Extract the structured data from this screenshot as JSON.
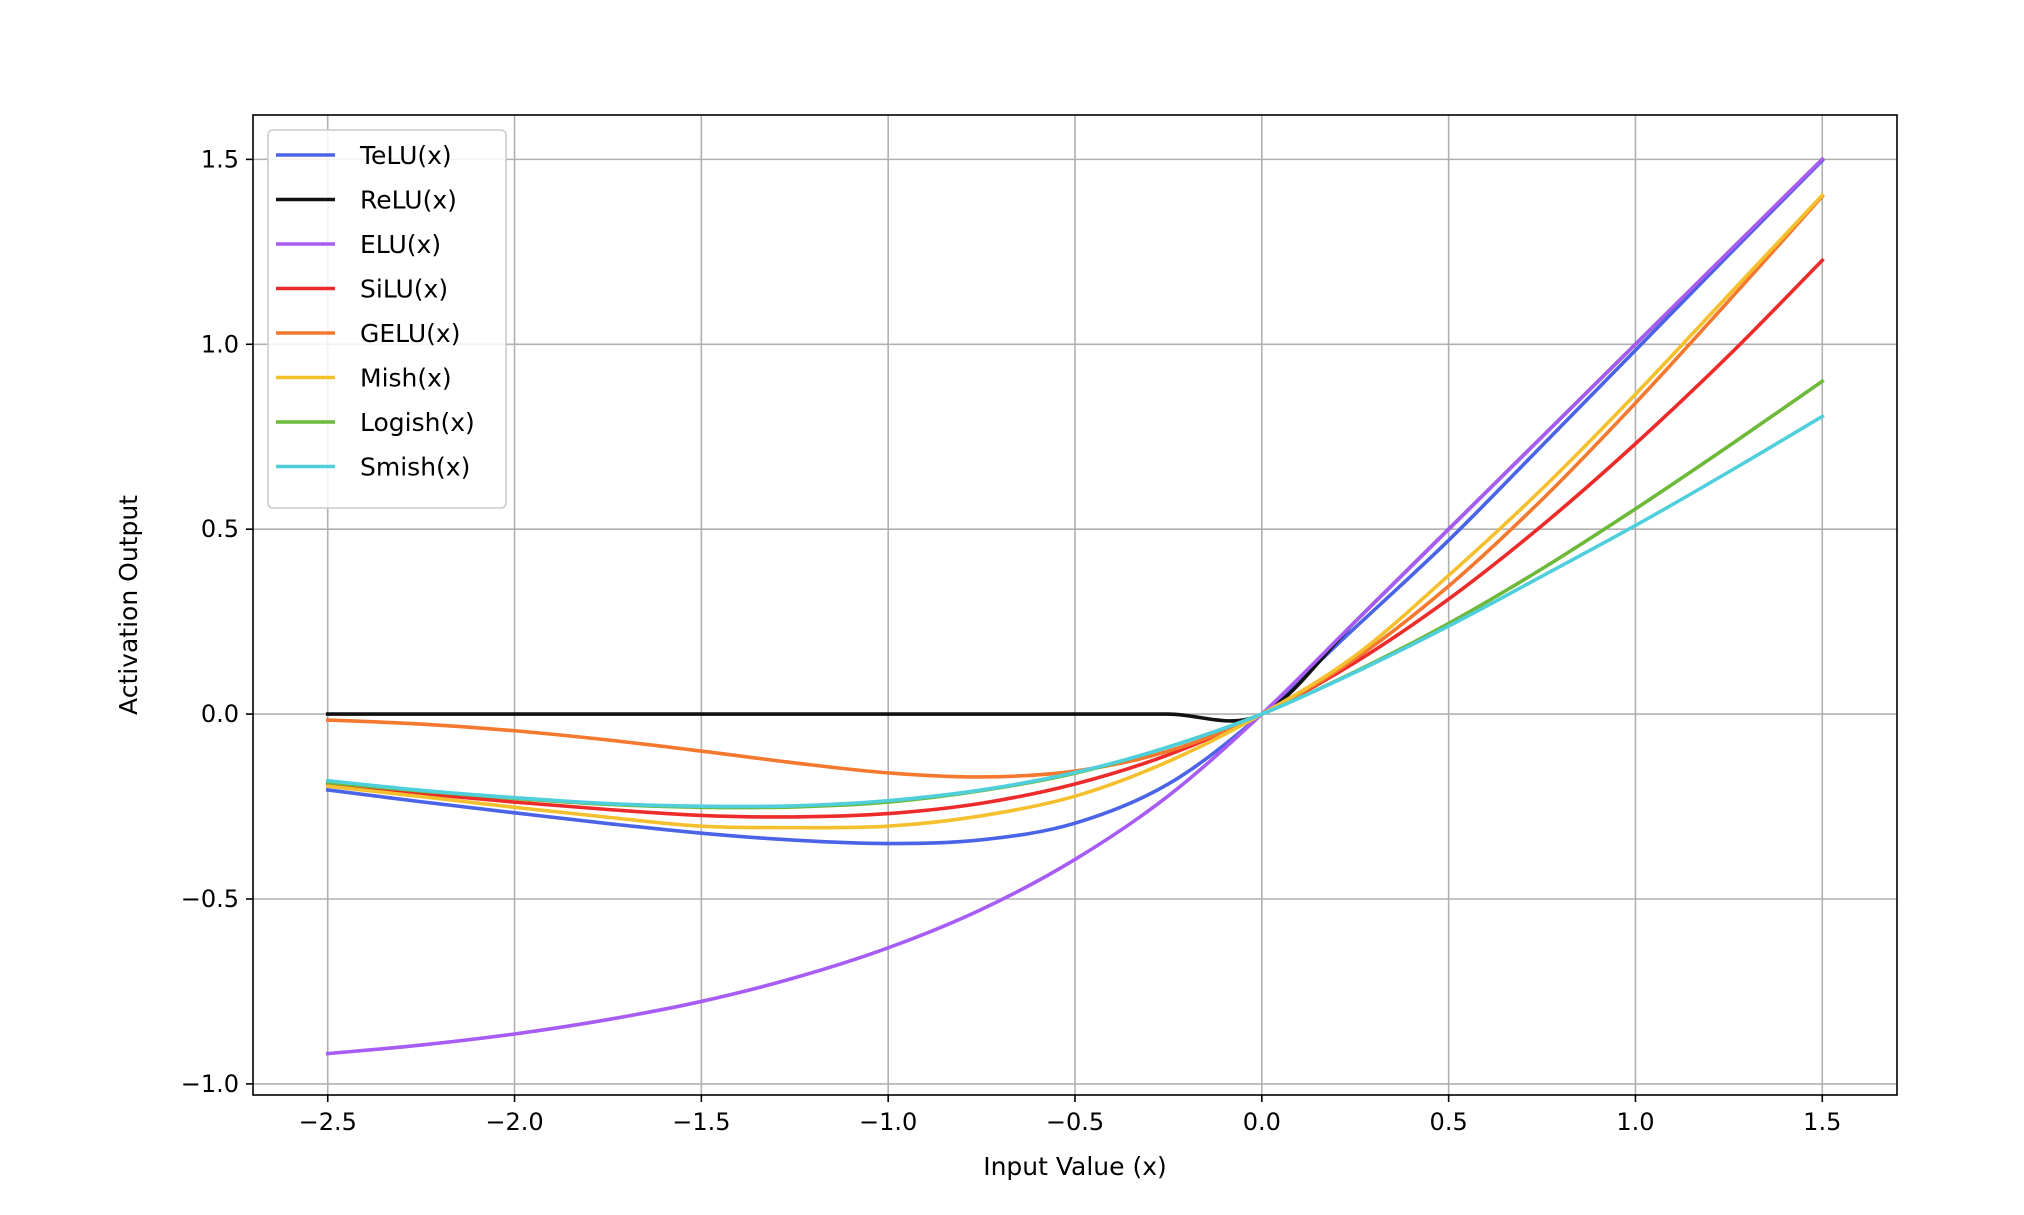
{
  "chart_data": {
    "type": "line",
    "xlabel": "Input Value (x)",
    "ylabel": "Activation Output",
    "xlim": [
      -2.7,
      1.7
    ],
    "ylim": [
      -1.03,
      1.62
    ],
    "xticks": [
      -2.5,
      -2.0,
      -1.5,
      -1.0,
      -0.5,
      0.0,
      0.5,
      1.0,
      1.5
    ],
    "xtick_labels": [
      "−2.5",
      "−2.0",
      "−1.5",
      "−1.0",
      "−0.5",
      "0.0",
      "0.5",
      "1.0",
      "1.5"
    ],
    "yticks": [
      -1.0,
      -0.5,
      0.0,
      0.5,
      1.0,
      1.5
    ],
    "ytick_labels": [
      "−1.0",
      "−0.5",
      "0.0",
      "0.5",
      "1.0",
      "1.5"
    ],
    "grid": true,
    "legend_position": "upper-left",
    "x": [
      -2.5,
      -2.25,
      -2.0,
      -1.75,
      -1.5,
      -1.25,
      -1.0,
      -0.75,
      -0.5,
      -0.25,
      0.0,
      0.25,
      0.5,
      0.75,
      1.0,
      1.25,
      1.5
    ],
    "series": [
      {
        "name": "TeLU(x)",
        "color": "#4a63e7",
        "values": [
          -0.205,
          -0.237,
          -0.267,
          -0.296,
          -0.322,
          -0.341,
          -0.35,
          -0.34,
          -0.295,
          -0.189,
          0.0,
          0.234,
          0.47,
          0.726,
          0.984,
          1.242,
          1.497
        ]
      },
      {
        "name": "ReLU(x)",
        "color": "#111111",
        "values": [
          0.0,
          0.0,
          0.0,
          0.0,
          0.0,
          0.0,
          0.0,
          0.0,
          0.0,
          0.0,
          0.0,
          0.25,
          0.5,
          0.75,
          1.0,
          1.25,
          1.5
        ]
      },
      {
        "name": "ELU(x)",
        "color": "#a85cf6",
        "values": [
          -0.918,
          -0.895,
          -0.865,
          -0.826,
          -0.777,
          -0.713,
          -0.632,
          -0.528,
          -0.393,
          -0.221,
          0.0,
          0.25,
          0.5,
          0.75,
          1.0,
          1.25,
          1.5
        ]
      },
      {
        "name": "SiLU(x)",
        "color": "#ee2b2b",
        "values": [
          -0.189,
          -0.215,
          -0.238,
          -0.258,
          -0.274,
          -0.278,
          -0.269,
          -0.241,
          -0.189,
          -0.11,
          0.0,
          0.14,
          0.311,
          0.51,
          0.731,
          0.97,
          1.227
        ]
      },
      {
        "name": "GELU(x)",
        "color": "#f4782e",
        "values": [
          -0.016,
          -0.027,
          -0.045,
          -0.07,
          -0.1,
          -0.132,
          -0.159,
          -0.17,
          -0.154,
          -0.1,
          0.0,
          0.15,
          0.346,
          0.58,
          0.841,
          1.118,
          1.4
        ]
      },
      {
        "name": "Mish(x)",
        "color": "#f5c02e",
        "values": [
          -0.195,
          -0.223,
          -0.252,
          -0.279,
          -0.303,
          -0.307,
          -0.303,
          -0.275,
          -0.222,
          -0.128,
          0.0,
          0.158,
          0.375,
          0.609,
          0.865,
          1.134,
          1.403
        ]
      },
      {
        "name": "Logish(x)",
        "color": "#6db93a",
        "values": [
          -0.185,
          -0.208,
          -0.228,
          -0.244,
          -0.252,
          -0.251,
          -0.238,
          -0.207,
          -0.16,
          -0.089,
          0.0,
          0.115,
          0.245,
          0.393,
          0.555,
          0.725,
          0.9
        ]
      },
      {
        "name": "Smish(x)",
        "color": "#4fcfdc",
        "values": [
          -0.18,
          -0.206,
          -0.226,
          -0.242,
          -0.249,
          -0.248,
          -0.234,
          -0.205,
          -0.158,
          -0.089,
          0.0,
          0.113,
          0.238,
          0.373,
          0.51,
          0.655,
          0.805
        ]
      }
    ]
  }
}
